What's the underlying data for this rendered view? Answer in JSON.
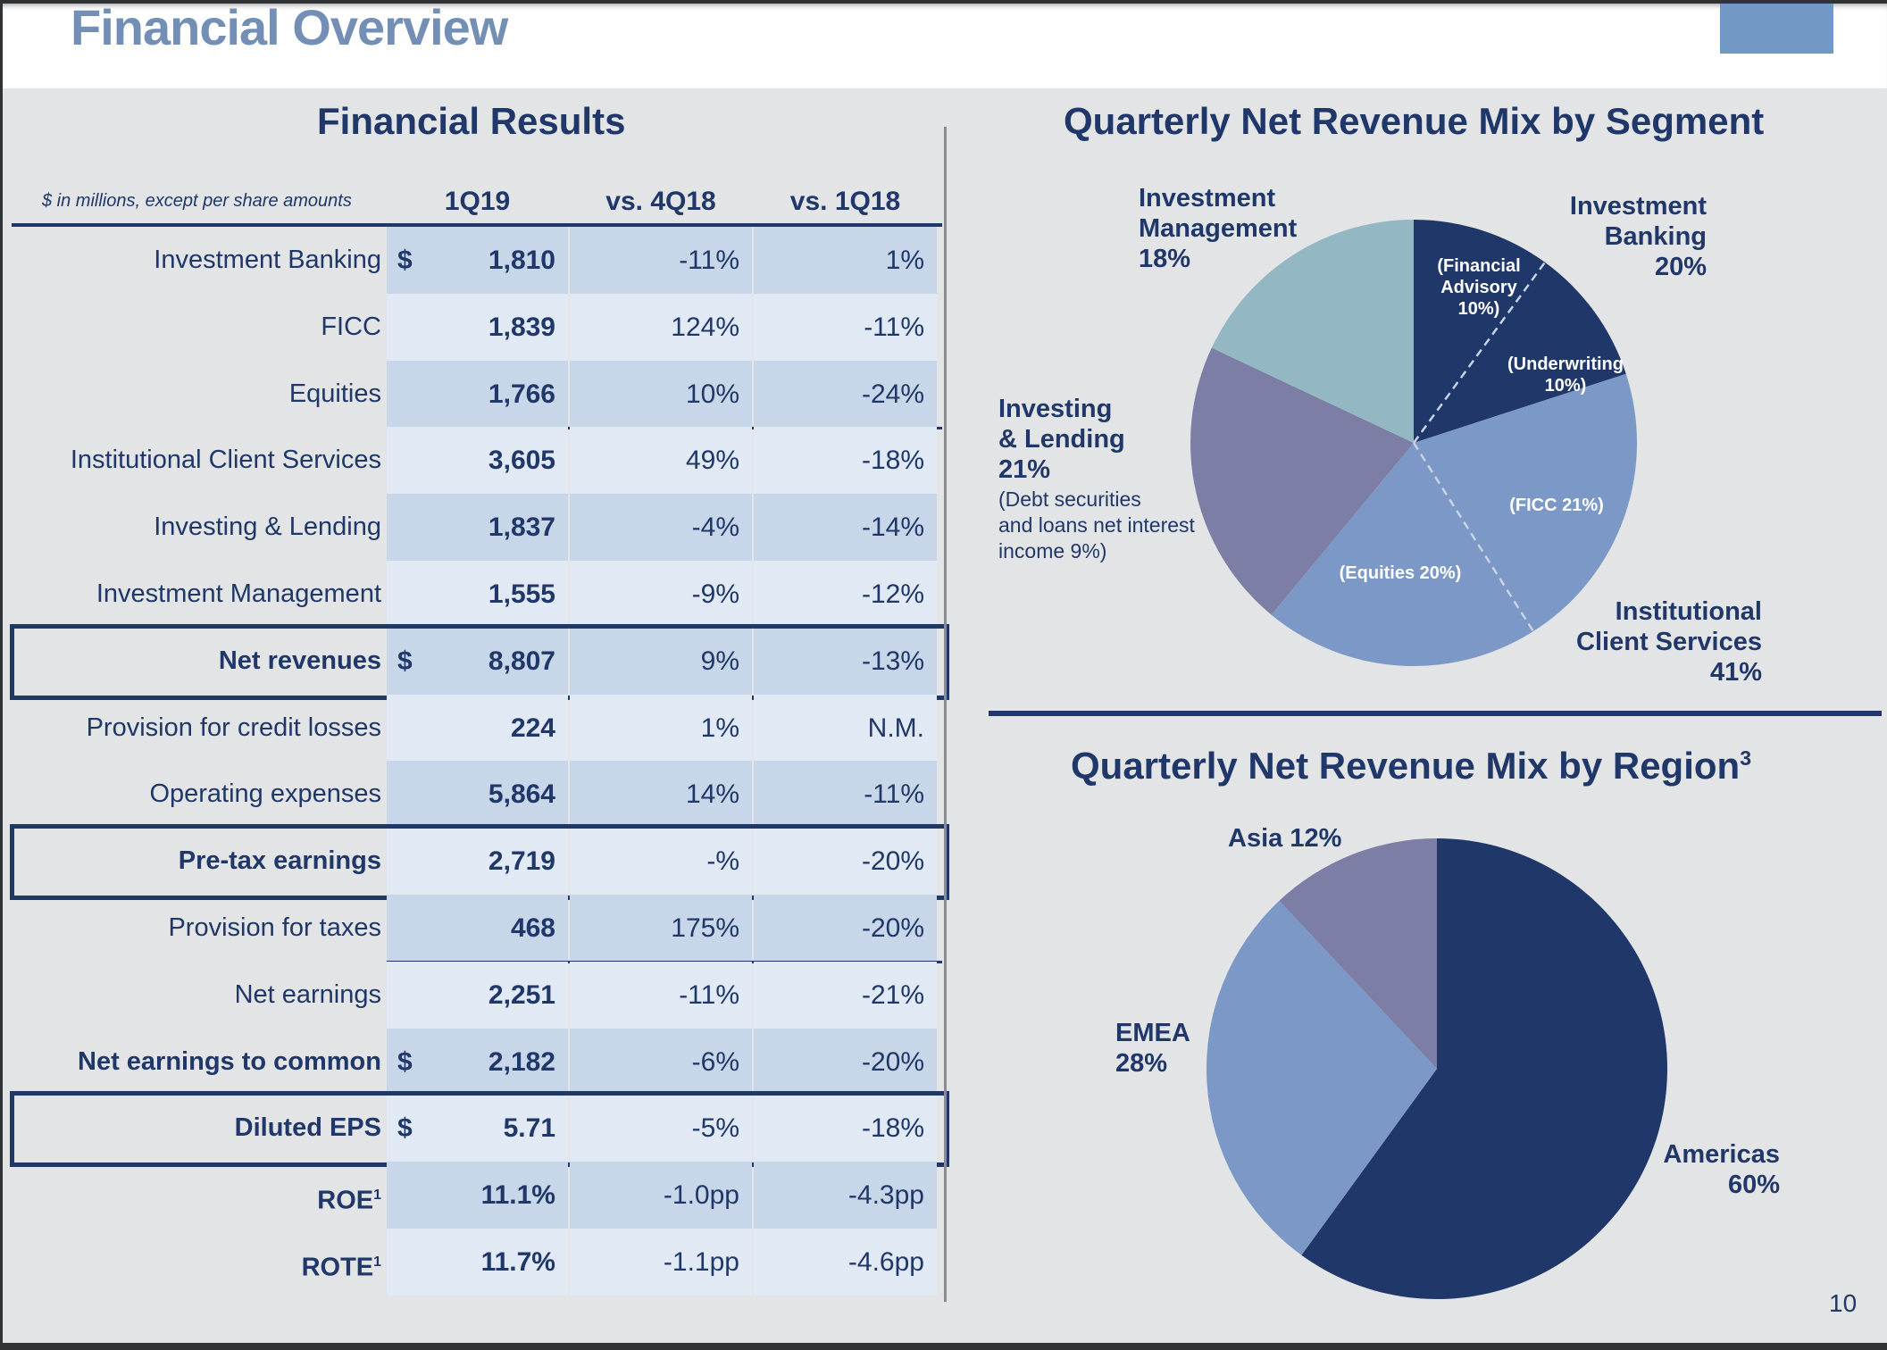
{
  "page": {
    "title": "Financial Overview",
    "page_number": "10"
  },
  "table": {
    "title": "Financial Results",
    "note": "$ in millions, except per share amounts",
    "columns": [
      "1Q19",
      "vs. 4Q18",
      "vs. 1Q18"
    ],
    "rows": [
      {
        "label": "Investment Banking",
        "dollar": "$",
        "value": "1,810",
        "vs_prior_q": "-11%",
        "vs_prior_y": "1%",
        "bold": false
      },
      {
        "label": "FICC",
        "dollar": "",
        "value": "1,839",
        "vs_prior_q": "124%",
        "vs_prior_y": "-11%",
        "bold": false
      },
      {
        "label": "Equities",
        "dollar": "",
        "value": "1,766",
        "vs_prior_q": "10%",
        "vs_prior_y": "-24%",
        "bold": false
      },
      {
        "label": "Institutional Client Services",
        "dollar": "",
        "value": "3,605",
        "vs_prior_q": "49%",
        "vs_prior_y": "-18%",
        "bold": false
      },
      {
        "label": "Investing & Lending",
        "dollar": "",
        "value": "1,837",
        "vs_prior_q": "-4%",
        "vs_prior_y": "-14%",
        "bold": false
      },
      {
        "label": "Investment Management",
        "dollar": "",
        "value": "1,555",
        "vs_prior_q": "-9%",
        "vs_prior_y": "-12%",
        "bold": false
      },
      {
        "label": "Net revenues",
        "dollar": "$",
        "value": "8,807",
        "vs_prior_q": "9%",
        "vs_prior_y": "-13%",
        "bold": true
      },
      {
        "label": "Provision for credit losses",
        "dollar": "",
        "value": "224",
        "vs_prior_q": "1%",
        "vs_prior_y": "N.M.",
        "bold": false
      },
      {
        "label": "Operating expenses",
        "dollar": "",
        "value": "5,864",
        "vs_prior_q": "14%",
        "vs_prior_y": "-11%",
        "bold": false
      },
      {
        "label": "Pre-tax earnings",
        "dollar": "",
        "value": "2,719",
        "vs_prior_q": "-%",
        "vs_prior_y": "-20%",
        "bold": true
      },
      {
        "label": "Provision for taxes",
        "dollar": "",
        "value": "468",
        "vs_prior_q": "175%",
        "vs_prior_y": "-20%",
        "bold": false
      },
      {
        "label": "Net earnings",
        "dollar": "",
        "value": "2,251",
        "vs_prior_q": "-11%",
        "vs_prior_y": "-21%",
        "bold": false
      },
      {
        "label": "Net earnings to common",
        "dollar": "$",
        "value": "2,182",
        "vs_prior_q": "-6%",
        "vs_prior_y": "-20%",
        "bold": true
      },
      {
        "label": "Diluted EPS",
        "dollar": "$",
        "value": "5.71",
        "vs_prior_q": "-5%",
        "vs_prior_y": "-18%",
        "bold": true
      },
      {
        "label": "ROE",
        "footnote": "1",
        "dollar": "",
        "value": "11.1%",
        "vs_prior_q": "-1.0pp",
        "vs_prior_y": "-4.3pp",
        "bold": true
      },
      {
        "label": "ROTE",
        "footnote": "1",
        "dollar": "",
        "value": "11.7%",
        "vs_prior_q": "-1.1pp",
        "vs_prior_y": "-4.6pp",
        "bold": true
      }
    ]
  },
  "colors": {
    "navy": "#1f3769",
    "periwinkle": "#7c98c6",
    "slate_purple": "#7c7ea5",
    "teal_gray": "#93b8c4",
    "title_blue": "#738fb6",
    "header_block": "#7298c5"
  },
  "chart_data": [
    {
      "type": "pie",
      "title": "Quarterly Net Revenue Mix by Segment",
      "slices": [
        {
          "name": "Investment Banking",
          "value": 20,
          "label": "Investment\nBanking\n20%",
          "color": "#1f3769",
          "sub": [
            {
              "name": "Financial Advisory",
              "value": 10,
              "label": "(Financial\nAdvisory\n10%)"
            },
            {
              "name": "Underwriting",
              "value": 10,
              "label": "(Underwriting\n10%)"
            }
          ]
        },
        {
          "name": "Institutional Client Services",
          "value": 41,
          "label": "Institutional\nClient Services\n41%",
          "color": "#7c98c6",
          "sub": [
            {
              "name": "FICC",
              "value": 21,
              "label": "(FICC 21%)"
            },
            {
              "name": "Equities",
              "value": 20,
              "label": "(Equities 20%)"
            }
          ]
        },
        {
          "name": "Investing & Lending",
          "value": 21,
          "label": "Investing\n& Lending\n21%",
          "color": "#7c7ea5",
          "note": "(Debt securities\nand loans net interest\nincome 9%)"
        },
        {
          "name": "Investment Management",
          "value": 18,
          "label": "Investment\nManagement\n18%",
          "color": "#93b8c4"
        }
      ],
      "start": "12 o'clock",
      "direction": "clockwise"
    },
    {
      "type": "pie",
      "title": "Quarterly Net Revenue Mix by Region",
      "title_footnote": "3",
      "slices": [
        {
          "name": "Americas",
          "value": 60,
          "label": "Americas\n60%",
          "color": "#1f3769"
        },
        {
          "name": "EMEA",
          "value": 28,
          "label": "EMEA\n28%",
          "color": "#7c98c6"
        },
        {
          "name": "Asia",
          "value": 12,
          "label": "Asia 12%",
          "color": "#7c7ea5"
        }
      ],
      "start": "12 o'clock",
      "direction": "clockwise"
    }
  ]
}
